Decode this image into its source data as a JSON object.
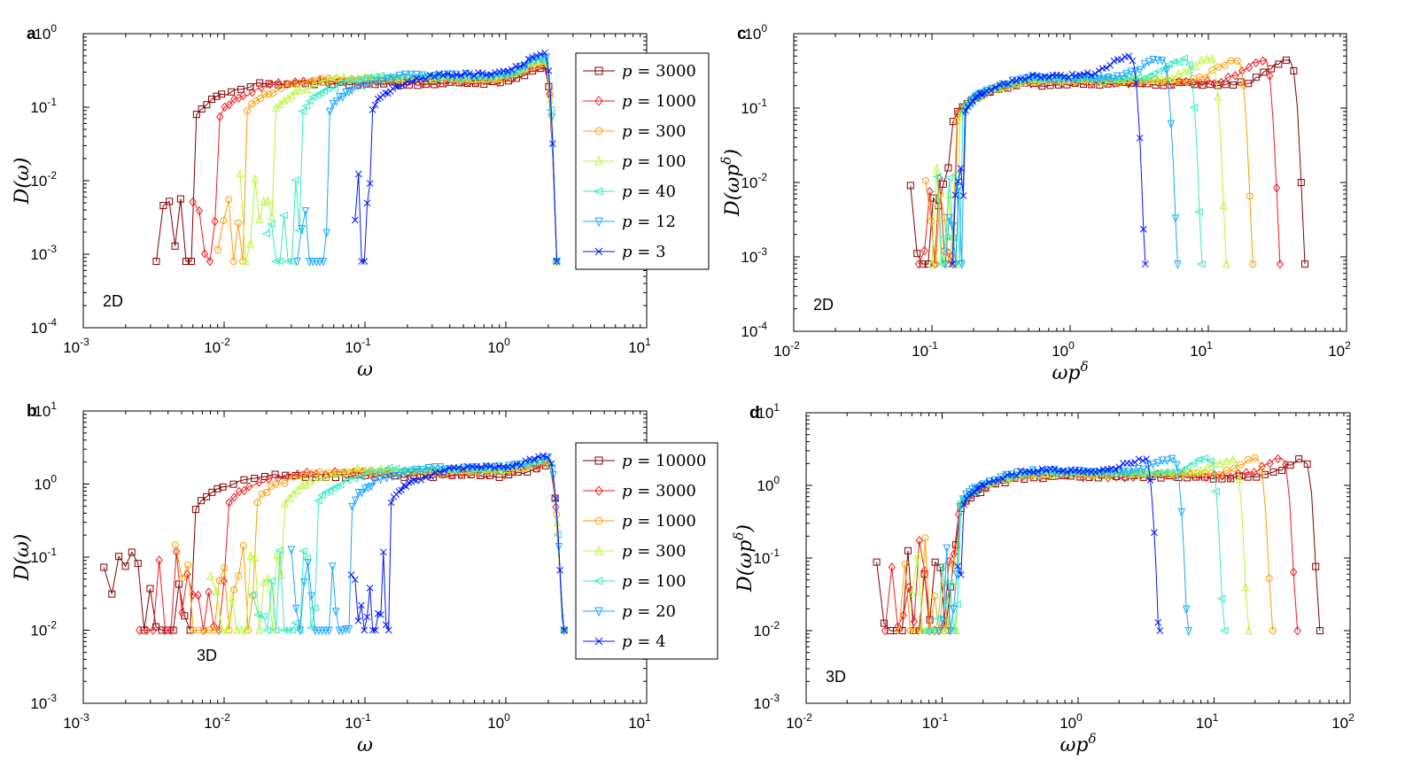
{
  "colors": {
    "p0": "#7f0000",
    "p1": "#ee1c1c",
    "p2": "#ff9c00",
    "p3": "#b8f534",
    "p4": "#33ebc2",
    "p5": "#1aa6ff",
    "p6": "#0016ff"
  },
  "chart_data": [
    {
      "id": "a",
      "type": "line",
      "panel_label": "a",
      "dimension_label": "2D",
      "xlabel": "ω",
      "ylabel": "D(ω)",
      "xscale": "log",
      "yscale": "log",
      "xlim": [
        0.001,
        10
      ],
      "ylim": [
        0.0001,
        1
      ],
      "xtick_exponents": [
        "-3",
        "-2",
        "-1",
        "0",
        "1"
      ],
      "ytick_exponents": [
        "-4",
        "-3",
        "-2",
        "-1",
        "0"
      ],
      "legend_position": "right-inside",
      "x_cutoff": 2.3,
      "peak_x": 1.9,
      "series": [
        {
          "label": "p = 3000",
          "prefix": "p",
          "value": "3000",
          "marker": "square",
          "color_key": "p0",
          "x_start": 0.0033,
          "x_rise": 0.006,
          "plateau": 0.21,
          "peak": 0.33,
          "floor": 0.0008
        },
        {
          "label": "p = 1000",
          "prefix": "p",
          "value": "1000",
          "marker": "diamond",
          "color_key": "p1",
          "x_start": 0.006,
          "x_rise": 0.009,
          "plateau": 0.22,
          "peak": 0.36,
          "floor": 0.0008
        },
        {
          "label": "p = 300",
          "prefix": "p",
          "value": "300",
          "marker": "circle",
          "color_key": "p2",
          "x_start": 0.009,
          "x_rise": 0.014,
          "plateau": 0.24,
          "peak": 0.39,
          "floor": 0.0008
        },
        {
          "label": "p = 100",
          "prefix": "p",
          "value": "100",
          "marker": "triangle-up",
          "color_key": "p3",
          "x_start": 0.013,
          "x_rise": 0.022,
          "plateau": 0.25,
          "peak": 0.42,
          "floor": 0.0008
        },
        {
          "label": "p = 40",
          "prefix": "p",
          "value": "40",
          "marker": "triangle-left",
          "color_key": "p4",
          "x_start": 0.02,
          "x_rise": 0.035,
          "plateau": 0.26,
          "peak": 0.45,
          "floor": 0.0008
        },
        {
          "label": "p = 12",
          "prefix": "p",
          "value": "12",
          "marker": "triangle-down",
          "color_key": "p5",
          "x_start": 0.033,
          "x_rise": 0.055,
          "plateau": 0.27,
          "peak": 0.48,
          "floor": 0.0008
        },
        {
          "label": "p = 3",
          "prefix": "p",
          "value": "3",
          "marker": "x",
          "color_key": "p6",
          "x_start": 0.085,
          "x_rise": 0.11,
          "plateau": 0.28,
          "peak": 0.52,
          "floor": 0.0008
        }
      ]
    },
    {
      "id": "b",
      "type": "line",
      "panel_label": "b",
      "dimension_label": "3D",
      "xlabel": "ω",
      "ylabel": "D(ω)",
      "xscale": "log",
      "yscale": "log",
      "xlim": [
        0.001,
        10
      ],
      "ylim": [
        0.001,
        10
      ],
      "xtick_exponents": [
        "-3",
        "-2",
        "-1",
        "0",
        "1"
      ],
      "ytick_exponents": [
        "-3",
        "-2",
        "-1",
        "0",
        "1"
      ],
      "legend_position": "right-inside",
      "x_cutoff": 2.6,
      "peak_x": 2.0,
      "series": [
        {
          "label": "p = 10000",
          "prefix": "p",
          "value": "10000",
          "marker": "square",
          "color_key": "p0",
          "x_start": 0.0014,
          "x_rise": 0.006,
          "plateau": 1.3,
          "peak": 1.8,
          "floor": 0.01
        },
        {
          "label": "p = 3000",
          "prefix": "p",
          "value": "3000",
          "marker": "diamond",
          "color_key": "p1",
          "x_start": 0.0025,
          "x_rise": 0.01,
          "plateau": 1.4,
          "peak": 1.9,
          "floor": 0.01
        },
        {
          "label": "p = 1000",
          "prefix": "p",
          "value": "1000",
          "marker": "circle",
          "color_key": "p2",
          "x_start": 0.0045,
          "x_rise": 0.016,
          "plateau": 1.5,
          "peak": 2.0,
          "floor": 0.01
        },
        {
          "label": "p = 300",
          "prefix": "p",
          "value": "300",
          "marker": "triangle-up",
          "color_key": "p3",
          "x_start": 0.008,
          "x_rise": 0.026,
          "plateau": 1.55,
          "peak": 2.1,
          "floor": 0.01
        },
        {
          "label": "p = 100",
          "prefix": "p",
          "value": "100",
          "marker": "triangle-left",
          "color_key": "p4",
          "x_start": 0.016,
          "x_rise": 0.045,
          "plateau": 1.6,
          "peak": 2.2,
          "floor": 0.01
        },
        {
          "label": "p = 20",
          "prefix": "p",
          "value": "20",
          "marker": "triangle-down",
          "color_key": "p5",
          "x_start": 0.03,
          "x_rise": 0.08,
          "plateau": 1.65,
          "peak": 2.3,
          "floor": 0.01
        },
        {
          "label": "p = 4",
          "prefix": "p",
          "value": "4",
          "marker": "x",
          "color_key": "p6",
          "x_start": 0.08,
          "x_rise": 0.15,
          "plateau": 1.7,
          "peak": 2.4,
          "floor": 0.01
        }
      ]
    },
    {
      "id": "c",
      "type": "line",
      "panel_label": "c",
      "dimension_label": "2D",
      "xlabel": "ωp",
      "xlabel_sup": "δ",
      "ylabel": "D(ωp",
      "ylabel_sup": "δ",
      "ylabel_close": ")",
      "xscale": "log",
      "yscale": "log",
      "xlim": [
        0.01,
        100
      ],
      "ylim": [
        0.0001,
        1
      ],
      "xtick_exponents": [
        "-2",
        "-1",
        "0",
        "1",
        "2"
      ],
      "ytick_exponents": [
        "-4",
        "-3",
        "-2",
        "-1",
        "0"
      ],
      "series": [
        {
          "label": "p = 3000",
          "marker": "square",
          "color_key": "p0",
          "x_start": 0.07,
          "x_rise": 0.14,
          "plateau": 0.21,
          "peak": 0.45,
          "cutoff": 50,
          "floor": 0.0008
        },
        {
          "label": "p = 1000",
          "marker": "diamond",
          "color_key": "p1",
          "x_start": 0.08,
          "x_rise": 0.145,
          "plateau": 0.22,
          "peak": 0.45,
          "cutoff": 33,
          "floor": 0.0008
        },
        {
          "label": "p = 300",
          "marker": "circle",
          "color_key": "p2",
          "x_start": 0.09,
          "x_rise": 0.15,
          "plateau": 0.23,
          "peak": 0.45,
          "cutoff": 21,
          "floor": 0.0008
        },
        {
          "label": "p = 100",
          "marker": "triangle-up",
          "color_key": "p3",
          "x_start": 0.1,
          "x_rise": 0.155,
          "plateau": 0.24,
          "peak": 0.45,
          "cutoff": 13.5,
          "floor": 0.0008
        },
        {
          "label": "p = 40",
          "marker": "triangle-left",
          "color_key": "p4",
          "x_start": 0.11,
          "x_rise": 0.16,
          "plateau": 0.25,
          "peak": 0.45,
          "cutoff": 9,
          "floor": 0.0008
        },
        {
          "label": "p = 12",
          "marker": "triangle-down",
          "color_key": "p5",
          "x_start": 0.125,
          "x_rise": 0.165,
          "plateau": 0.26,
          "peak": 0.46,
          "cutoff": 6,
          "floor": 0.0008
        },
        {
          "label": "p = 3",
          "marker": "x",
          "color_key": "p6",
          "x_start": 0.14,
          "x_rise": 0.17,
          "plateau": 0.27,
          "peak": 0.5,
          "cutoff": 3.5,
          "floor": 0.0008
        }
      ]
    },
    {
      "id": "d",
      "type": "line",
      "panel_label": "d",
      "dimension_label": "3D",
      "xlabel": "ωp",
      "xlabel_sup": "δ",
      "ylabel": "D(ωp",
      "ylabel_sup": "δ",
      "ylabel_close": ")",
      "xscale": "log",
      "yscale": "log",
      "xlim": [
        0.01,
        100
      ],
      "ylim": [
        0.001,
        10
      ],
      "xtick_exponents": [
        "-2",
        "-1",
        "0",
        "1",
        "2"
      ],
      "ytick_exponents": [
        "-3",
        "-2",
        "-1",
        "0",
        "1"
      ],
      "series": [
        {
          "label": "p = 10000",
          "marker": "square",
          "color_key": "p0",
          "x_start": 0.033,
          "x_rise": 0.13,
          "plateau": 1.3,
          "peak": 2.3,
          "cutoff": 60,
          "floor": 0.01
        },
        {
          "label": "p = 3000",
          "marker": "diamond",
          "color_key": "p1",
          "x_start": 0.038,
          "x_rise": 0.13,
          "plateau": 1.35,
          "peak": 2.3,
          "cutoff": 41,
          "floor": 0.01
        },
        {
          "label": "p = 1000",
          "marker": "circle",
          "color_key": "p2",
          "x_start": 0.048,
          "x_rise": 0.13,
          "plateau": 1.4,
          "peak": 2.3,
          "cutoff": 27,
          "floor": 0.01
        },
        {
          "label": "p = 300",
          "marker": "triangle-up",
          "color_key": "p3",
          "x_start": 0.06,
          "x_rise": 0.13,
          "plateau": 1.45,
          "peak": 2.3,
          "cutoff": 18,
          "floor": 0.01
        },
        {
          "label": "p = 100",
          "marker": "triangle-left",
          "color_key": "p4",
          "x_start": 0.075,
          "x_rise": 0.13,
          "plateau": 1.5,
          "peak": 2.3,
          "cutoff": 12,
          "floor": 0.01
        },
        {
          "label": "p = 20",
          "marker": "triangle-down",
          "color_key": "p5",
          "x_start": 0.095,
          "x_rise": 0.13,
          "plateau": 1.55,
          "peak": 2.3,
          "cutoff": 6.5,
          "floor": 0.01
        },
        {
          "label": "p = 4",
          "marker": "x",
          "color_key": "p6",
          "x_start": 0.13,
          "x_rise": 0.14,
          "plateau": 1.6,
          "peak": 2.3,
          "cutoff": 4,
          "floor": 0.01
        }
      ]
    }
  ]
}
